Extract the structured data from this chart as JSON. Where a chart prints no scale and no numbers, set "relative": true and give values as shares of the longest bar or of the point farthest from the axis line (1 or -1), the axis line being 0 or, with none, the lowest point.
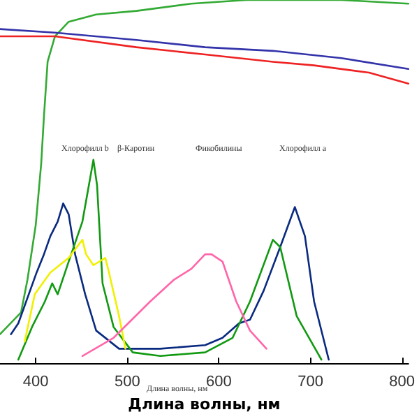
{
  "chart_data": {
    "type": "line",
    "relative": true,
    "xlabel": "Длина волны, нм",
    "xlim": [
      361,
      807
    ],
    "xticks": [
      400,
      500,
      600,
      700,
      800
    ],
    "tick_labels": "x",
    "marker": "none",
    "series": [
      {
        "color": "#33aa33",
        "x": [
          361,
          384,
          391,
          400,
          406,
          409,
          413,
          421,
          436,
          466,
          510,
          570,
          630,
          734,
          807
        ],
        "values": [
          0.08,
          0.14,
          0.23,
          0.38,
          0.55,
          0.68,
          0.83,
          0.9,
          0.94,
          0.96,
          0.97,
          0.99,
          1.0,
          1.0,
          0.99
        ]
      },
      {
        "color": "#3333aa",
        "x": [
          361,
          421,
          510,
          585,
          659,
          734,
          807
        ],
        "values": [
          0.92,
          0.91,
          0.89,
          0.87,
          0.86,
          0.84,
          0.81
        ]
      },
      {
        "color": "#ee2222",
        "x": [
          361,
          421,
          510,
          585,
          659,
          704,
          764,
          807
        ],
        "values": [
          0.9,
          0.9,
          0.87,
          0.85,
          0.83,
          0.82,
          0.8,
          0.77
        ]
      },
      {
        "color": "#0a2a80",
        "x": [
          373,
          381,
          401,
          409,
          416,
          424,
          430,
          436,
          443,
          454,
          466,
          491,
          536,
          585,
          604,
          622,
          634,
          649,
          667,
          683,
          694,
          704,
          720
        ],
        "values": [
          0.08,
          0.11,
          0.25,
          0.3,
          0.35,
          0.39,
          0.44,
          0.41,
          0.3,
          0.19,
          0.09,
          0.04,
          0.04,
          0.05,
          0.07,
          0.11,
          0.12,
          0.2,
          0.32,
          0.43,
          0.35,
          0.17,
          0.01
        ]
      },
      {
        "color": "#119911",
        "x": [
          381,
          396,
          410,
          418,
          424,
          436,
          451,
          463,
          467,
          473,
          485,
          506,
          536,
          585,
          615,
          634,
          659,
          667,
          685,
          712
        ],
        "values": [
          0.01,
          0.1,
          0.17,
          0.22,
          0.19,
          0.28,
          0.39,
          0.56,
          0.49,
          0.22,
          0.1,
          0.03,
          0.02,
          0.03,
          0.07,
          0.17,
          0.34,
          0.32,
          0.13,
          0.01
        ]
      },
      {
        "color": "#f0f000",
        "x": [
          388,
          399,
          416,
          436,
          451,
          455,
          463,
          476,
          480,
          491,
          498
        ],
        "values": [
          0.06,
          0.19,
          0.25,
          0.29,
          0.34,
          0.3,
          0.27,
          0.29,
          0.25,
          0.13,
          0.04
        ]
      },
      {
        "color": "#ff66aa",
        "x": [
          451,
          485,
          525,
          551,
          570,
          585,
          592,
          604,
          619,
          634,
          652
        ],
        "values": [
          0.02,
          0.07,
          0.17,
          0.23,
          0.26,
          0.3,
          0.3,
          0.28,
          0.17,
          0.09,
          0.04
        ]
      }
    ],
    "annotations": [
      "Хлорофилл b",
      "β-Каротин",
      "Фикобилины",
      "Хлорофилл a",
      "Длина волны, нм"
    ]
  }
}
